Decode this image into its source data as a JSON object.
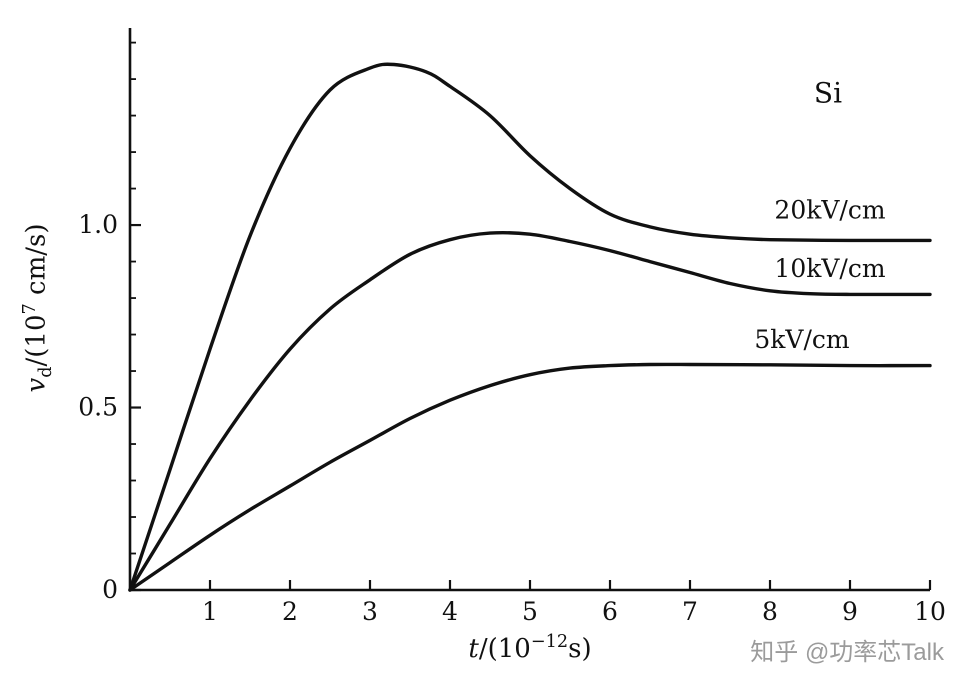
{
  "figure": {
    "background": "#ffffff",
    "ink_color": "#111111",
    "annotation": "Si",
    "watermark": "知乎 @功率芯Talk",
    "watermark_color": "#9b9b9b"
  },
  "axis_labels": {
    "y_var": "v",
    "y_sub": "d",
    "y_mid": "/(10",
    "y_sup": "7",
    "y_end": " cm/s)",
    "x_var": "t",
    "x_mid": "/(10",
    "x_sup": "−12",
    "x_end": "s)"
  },
  "chart_data": {
    "type": "line",
    "title": "",
    "annotation": "Si",
    "xlabel": "t/(10⁻¹²s)",
    "ylabel": "v_d/(10⁷ cm/s)",
    "xlim": [
      0,
      10
    ],
    "ylim": [
      0,
      1.54
    ],
    "grid": false,
    "line_color": "#111111",
    "x_ticks": [
      1,
      2,
      3,
      4,
      5,
      6,
      7,
      8,
      9,
      10
    ],
    "x_tick_labels": [
      "1",
      "2",
      "3",
      "4",
      "5",
      "6",
      "7",
      "8",
      "9",
      "10"
    ],
    "y_ticks_major": [
      0,
      0.5,
      1.0
    ],
    "y_tick_labels": [
      "0",
      "0.5",
      "1.0"
    ],
    "y_ticks_minor": [
      0.1,
      0.2,
      0.3,
      0.4,
      0.6,
      0.7,
      0.8,
      0.9,
      1.1,
      1.2,
      1.3,
      1.4,
      1.5
    ],
    "series": [
      {
        "name": "20kV/cm",
        "label_pos": {
          "x": 8.75,
          "y": 1.04
        },
        "steady_state": 0.96,
        "peak": {
          "t": 3.3,
          "v": 1.44
        },
        "points": [
          [
            0,
            0
          ],
          [
            0.5,
            0.33
          ],
          [
            1,
            0.66
          ],
          [
            1.5,
            0.97
          ],
          [
            2,
            1.21
          ],
          [
            2.5,
            1.37
          ],
          [
            3,
            1.43
          ],
          [
            3.3,
            1.44
          ],
          [
            3.7,
            1.42
          ],
          [
            4,
            1.38
          ],
          [
            4.5,
            1.3
          ],
          [
            5,
            1.19
          ],
          [
            5.5,
            1.1
          ],
          [
            6,
            1.03
          ],
          [
            6.5,
            0.995
          ],
          [
            7,
            0.975
          ],
          [
            7.5,
            0.965
          ],
          [
            8,
            0.96
          ],
          [
            9,
            0.958
          ],
          [
            10,
            0.958
          ]
        ]
      },
      {
        "name": "10kV/cm",
        "label_pos": {
          "x": 8.75,
          "y": 0.88
        },
        "steady_state": 0.81,
        "peak": {
          "t": 4.7,
          "v": 0.98
        },
        "points": [
          [
            0,
            0
          ],
          [
            0.5,
            0.18
          ],
          [
            1,
            0.36
          ],
          [
            1.5,
            0.52
          ],
          [
            2,
            0.66
          ],
          [
            2.5,
            0.77
          ],
          [
            3,
            0.85
          ],
          [
            3.5,
            0.92
          ],
          [
            4,
            0.96
          ],
          [
            4.5,
            0.978
          ],
          [
            5,
            0.975
          ],
          [
            5.5,
            0.955
          ],
          [
            6,
            0.93
          ],
          [
            6.5,
            0.9
          ],
          [
            7,
            0.87
          ],
          [
            7.5,
            0.84
          ],
          [
            8,
            0.82
          ],
          [
            8.5,
            0.812
          ],
          [
            9,
            0.81
          ],
          [
            10,
            0.81
          ]
        ]
      },
      {
        "name": "5kV/cm",
        "label_pos": {
          "x": 8.4,
          "y": 0.685
        },
        "steady_state": 0.615,
        "peak": {
          "t": 6.5,
          "v": 0.618
        },
        "points": [
          [
            0,
            0
          ],
          [
            0.5,
            0.075
          ],
          [
            1,
            0.15
          ],
          [
            1.5,
            0.22
          ],
          [
            2,
            0.285
          ],
          [
            2.5,
            0.35
          ],
          [
            3,
            0.41
          ],
          [
            3.5,
            0.47
          ],
          [
            4,
            0.52
          ],
          [
            4.5,
            0.56
          ],
          [
            5,
            0.59
          ],
          [
            5.5,
            0.608
          ],
          [
            6,
            0.615
          ],
          [
            6.5,
            0.618
          ],
          [
            7,
            0.618
          ],
          [
            8,
            0.617
          ],
          [
            9,
            0.615
          ],
          [
            10,
            0.615
          ]
        ]
      }
    ]
  }
}
